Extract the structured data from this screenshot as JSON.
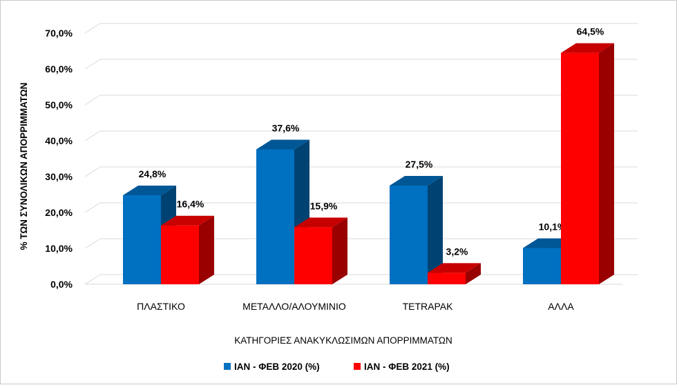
{
  "chart_data": {
    "type": "bar",
    "three_d": true,
    "categories": [
      "ΠΛΑΣΤΙΚΟ",
      "ΜΕΤΑΛΛΟ/ΑΛΟΥΜΙΝΙΟ",
      "TETRAPAK",
      "ΑΛΛΑ"
    ],
    "series": [
      {
        "name": "ΙΑΝ - ΦΕΒ 2020 (%)",
        "values": [
          24.8,
          37.6,
          27.5,
          10.1
        ],
        "labels": [
          "24,8%",
          "37,6%",
          "27,5%",
          "10,1%"
        ],
        "color": "#0070c0"
      },
      {
        "name": "ΙΑΝ - ΦΕΒ 2021 (%)",
        "values": [
          16.4,
          15.9,
          3.2,
          64.5
        ],
        "labels": [
          "16,4%",
          "15,9%",
          "3,2%",
          "64,5%"
        ],
        "color": "#ff0000"
      }
    ],
    "xlabel": "ΚΑΤΗΓΟΡΙΕΣ ΑΝΑΚΥΚΛΩΣΙΜΩΝ ΑΠΟΡΡΙΜΜΑΤΩΝ",
    "ylabel": "% ΤΩΝ ΣΥΝΟΛΙΚΩΝ ΑΠΟΡΡΙΜΜΑΤΩΝ",
    "ylim": [
      0,
      70
    ],
    "yticks": [
      "0,0%",
      "10,0%",
      "20,0%",
      "30,0%",
      "40,0%",
      "50,0%",
      "60,0%",
      "70,0%"
    ],
    "grid": true,
    "legend_position": "bottom"
  }
}
